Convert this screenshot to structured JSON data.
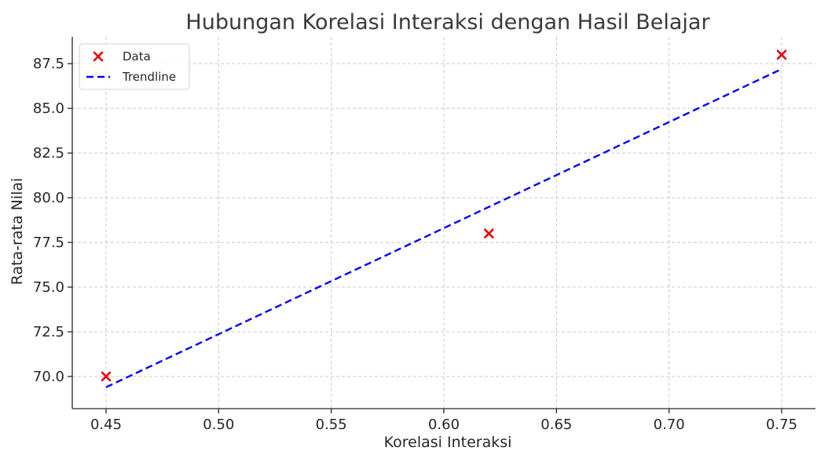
{
  "chart_data": {
    "type": "scatter",
    "title": "Hubungan Korelasi Interaksi dengan Hasil Belajar",
    "xlabel": "Korelasi Interaksi",
    "ylabel": "Rata-rata Nilai",
    "xlim": [
      0.435,
      0.765
    ],
    "ylim": [
      68.2,
      89.0
    ],
    "xticks": [
      0.45,
      0.5,
      0.55,
      0.6,
      0.65,
      0.7,
      0.75
    ],
    "xtick_labels": [
      "0.45",
      "0.50",
      "0.55",
      "0.60",
      "0.65",
      "0.70",
      "0.75"
    ],
    "yticks": [
      70.0,
      72.5,
      75.0,
      77.5,
      80.0,
      82.5,
      85.0,
      87.5
    ],
    "ytick_labels": [
      "70.0",
      "72.5",
      "75.0",
      "77.5",
      "80.0",
      "82.5",
      "85.0",
      "87.5"
    ],
    "grid": true,
    "legend_position": "top-left",
    "series": [
      {
        "name": "Data",
        "kind": "scatter",
        "marker": "x",
        "color": "#e8000b",
        "x": [
          0.45,
          0.62,
          0.75
        ],
        "y": [
          70.0,
          78.0,
          88.0
        ]
      },
      {
        "name": "Trendline",
        "kind": "line",
        "style": "dashed",
        "color": "#0000ff",
        "x": [
          0.45,
          0.75
        ],
        "y": [
          69.4,
          87.2
        ]
      }
    ]
  }
}
